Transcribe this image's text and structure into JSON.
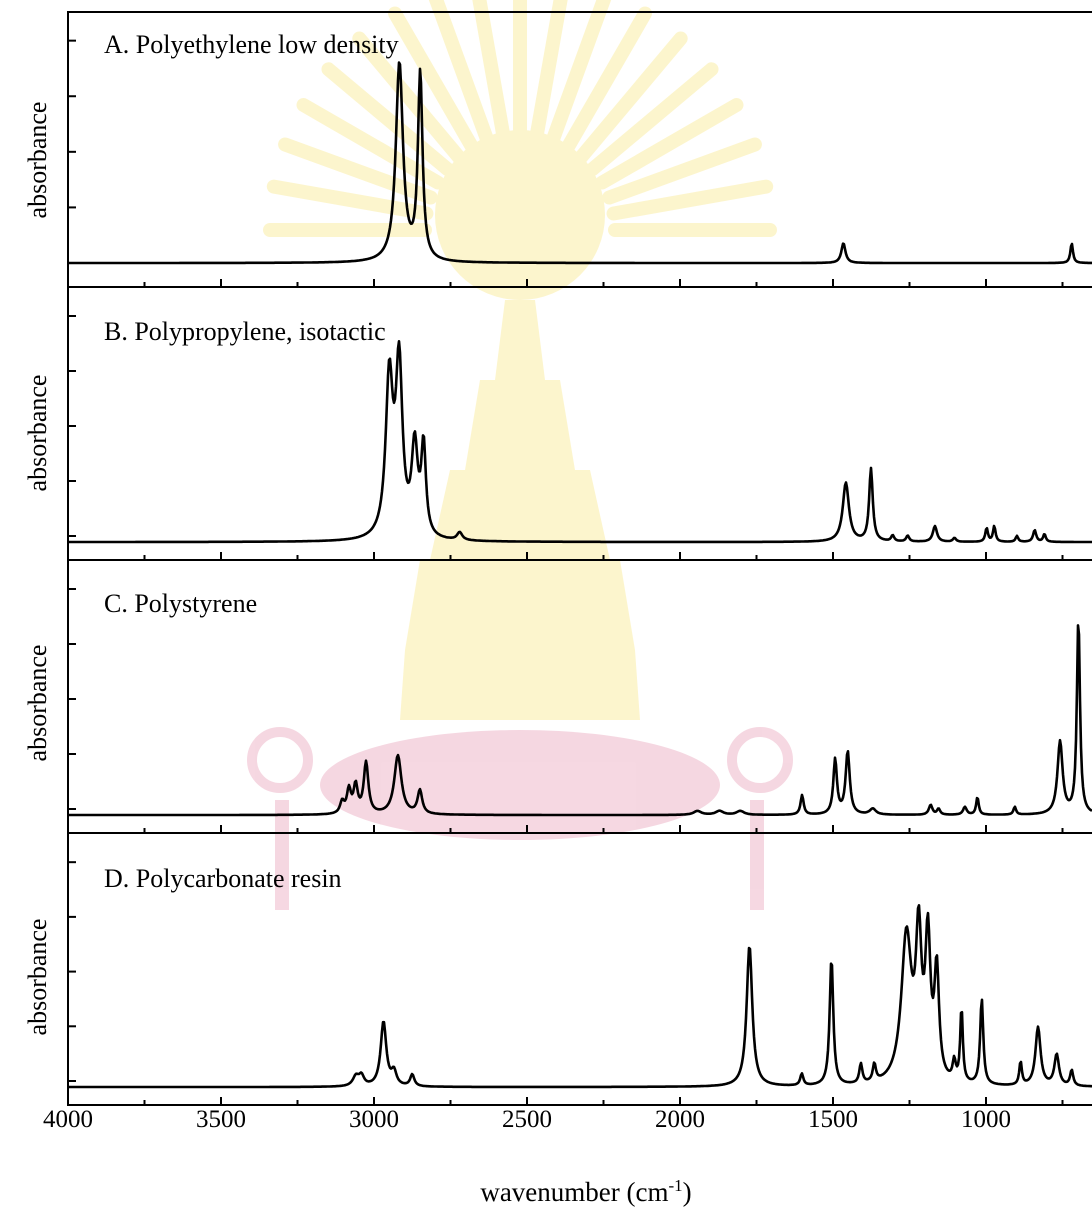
{
  "chart_data": {
    "type": "line",
    "xlabel_main": "wavenumber (cm",
    "xlabel_sup": "-1",
    "xlabel_close": ")",
    "xlim": [
      4000,
      650
    ],
    "x_ticks": [
      "4000",
      "3500",
      "3000",
      "2500",
      "2000",
      "1500",
      "1000"
    ],
    "panels": [
      {
        "title": "A. Polyethylene low density",
        "ylabel": "absorbance",
        "baseline": 0.05,
        "peaks": [
          {
            "x": 2917,
            "y": 1.0,
            "w": 14
          },
          {
            "x": 2849,
            "y": 0.94,
            "w": 9
          },
          {
            "x": 1466,
            "y": 0.1,
            "w": 8
          },
          {
            "x": 720,
            "y": 0.1,
            "w": 5
          }
        ]
      },
      {
        "title": "B. Polypropylene, isotactic",
        "ylabel": "absorbance",
        "baseline": 0.02,
        "peaks": [
          {
            "x": 2950,
            "y": 0.8,
            "w": 14
          },
          {
            "x": 2918,
            "y": 0.86,
            "w": 13
          },
          {
            "x": 2867,
            "y": 0.45,
            "w": 12
          },
          {
            "x": 2838,
            "y": 0.45,
            "w": 9
          },
          {
            "x": 2720,
            "y": 0.04,
            "w": 10
          },
          {
            "x": 1458,
            "y": 0.3,
            "w": 12
          },
          {
            "x": 1376,
            "y": 0.37,
            "w": 7
          },
          {
            "x": 1305,
            "y": 0.03,
            "w": 6
          },
          {
            "x": 1256,
            "y": 0.03,
            "w": 6
          },
          {
            "x": 1167,
            "y": 0.08,
            "w": 8
          },
          {
            "x": 1103,
            "y": 0.02,
            "w": 6
          },
          {
            "x": 998,
            "y": 0.07,
            "w": 5
          },
          {
            "x": 973,
            "y": 0.08,
            "w": 5
          },
          {
            "x": 899,
            "y": 0.03,
            "w": 5
          },
          {
            "x": 841,
            "y": 0.06,
            "w": 6
          },
          {
            "x": 809,
            "y": 0.04,
            "w": 5
          }
        ]
      },
      {
        "title": "C. Polystyrene",
        "ylabel": "absorbance",
        "baseline": 0.02,
        "peaks": [
          {
            "x": 3104,
            "y": 0.06,
            "w": 8
          },
          {
            "x": 3082,
            "y": 0.12,
            "w": 8
          },
          {
            "x": 3060,
            "y": 0.14,
            "w": 8
          },
          {
            "x": 3026,
            "y": 0.26,
            "w": 9
          },
          {
            "x": 2922,
            "y": 0.3,
            "w": 14
          },
          {
            "x": 2850,
            "y": 0.12,
            "w": 9
          },
          {
            "x": 1943,
            "y": 0.02,
            "w": 15
          },
          {
            "x": 1871,
            "y": 0.02,
            "w": 15
          },
          {
            "x": 1803,
            "y": 0.02,
            "w": 15
          },
          {
            "x": 1601,
            "y": 0.1,
            "w": 6
          },
          {
            "x": 1493,
            "y": 0.28,
            "w": 7
          },
          {
            "x": 1452,
            "y": 0.32,
            "w": 8
          },
          {
            "x": 1370,
            "y": 0.03,
            "w": 12
          },
          {
            "x": 1181,
            "y": 0.05,
            "w": 7
          },
          {
            "x": 1155,
            "y": 0.03,
            "w": 6
          },
          {
            "x": 1069,
            "y": 0.04,
            "w": 7
          },
          {
            "x": 1028,
            "y": 0.09,
            "w": 5
          },
          {
            "x": 906,
            "y": 0.04,
            "w": 5
          },
          {
            "x": 758,
            "y": 0.37,
            "w": 10
          },
          {
            "x": 698,
            "y": 1.0,
            "w": 6
          }
        ]
      },
      {
        "title": "D. Polycarbonate resin",
        "ylabel": "absorbance",
        "baseline": 0.02,
        "peaks": [
          {
            "x": 3059,
            "y": 0.05,
            "w": 12
          },
          {
            "x": 3041,
            "y": 0.05,
            "w": 10
          },
          {
            "x": 2969,
            "y": 0.33,
            "w": 11
          },
          {
            "x": 2935,
            "y": 0.07,
            "w": 10
          },
          {
            "x": 2875,
            "y": 0.06,
            "w": 8
          },
          {
            "x": 1773,
            "y": 0.72,
            "w": 11
          },
          {
            "x": 1602,
            "y": 0.06,
            "w": 6
          },
          {
            "x": 1505,
            "y": 0.65,
            "w": 7
          },
          {
            "x": 1409,
            "y": 0.1,
            "w": 6
          },
          {
            "x": 1365,
            "y": 0.09,
            "w": 6
          },
          {
            "x": 1260,
            "y": 0.75,
            "w": 20
          },
          {
            "x": 1220,
            "y": 0.7,
            "w": 11
          },
          {
            "x": 1190,
            "y": 0.7,
            "w": 10
          },
          {
            "x": 1161,
            "y": 0.55,
            "w": 9
          },
          {
            "x": 1104,
            "y": 0.1,
            "w": 6
          },
          {
            "x": 1080,
            "y": 0.38,
            "w": 5
          },
          {
            "x": 1014,
            "y": 0.44,
            "w": 6
          },
          {
            "x": 887,
            "y": 0.12,
            "w": 5
          },
          {
            "x": 830,
            "y": 0.3,
            "w": 10
          },
          {
            "x": 769,
            "y": 0.16,
            "w": 9
          },
          {
            "x": 720,
            "y": 0.08,
            "w": 6
          }
        ]
      }
    ]
  }
}
